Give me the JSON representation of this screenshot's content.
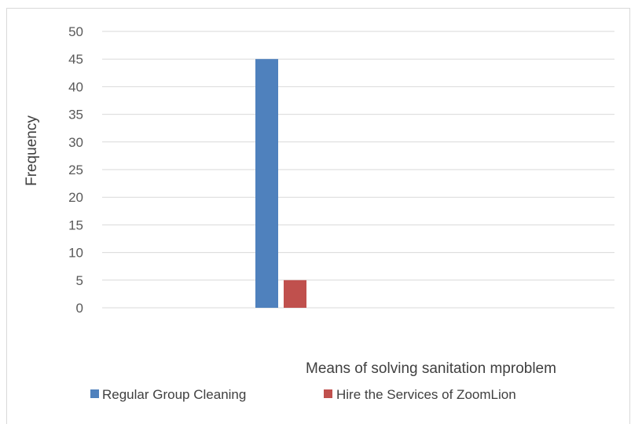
{
  "chart_data": {
    "type": "bar",
    "title": "",
    "xlabel": "Means of solving sanitation mproblem",
    "ylabel": "Frequency",
    "ylim": [
      0,
      50
    ],
    "ytick_step": 5,
    "yticks": [
      "0",
      "5",
      "10",
      "15",
      "20",
      "25",
      "30",
      "35",
      "40",
      "45",
      "50"
    ],
    "grid": true,
    "legend_position": "bottom",
    "series": [
      {
        "name": "Regular Group Cleaning",
        "values": [
          45
        ],
        "color": "#4f81bd"
      },
      {
        "name": "Hire the Services of ZoomLion",
        "values": [
          5
        ],
        "color": "#c0504d"
      }
    ]
  }
}
